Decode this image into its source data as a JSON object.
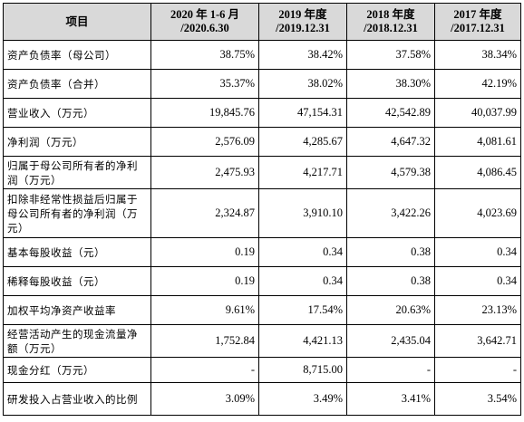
{
  "header": {
    "item": "项目",
    "periods": [
      [
        "2020 年 1-6 月",
        "/2020.6.30"
      ],
      [
        "2019 年度",
        "/2019.12.31"
      ],
      [
        "2018 年度",
        "/2018.12.31"
      ],
      [
        "2017 年度",
        "/2017.12.31"
      ]
    ]
  },
  "rows": [
    {
      "label": "资产负债率（母公司）",
      "values": [
        "38.75%",
        "38.42%",
        "37.58%",
        "38.34%"
      ]
    },
    {
      "label": "资产负债率（合并）",
      "values": [
        "35.37%",
        "38.02%",
        "38.30%",
        "42.19%"
      ]
    },
    {
      "label": "营业收入（万元）",
      "values": [
        "19,845.76",
        "47,154.31",
        "42,542.89",
        "40,037.99"
      ]
    },
    {
      "label": "净利润（万元）",
      "values": [
        "2,576.09",
        "4,285.67",
        "4,647.32",
        "4,081.61"
      ]
    },
    {
      "label": "归属于母公司所有者的净利润（万元）",
      "values": [
        "2,475.93",
        "4,217.71",
        "4,579.38",
        "4,086.45"
      ]
    },
    {
      "label": "扣除非经常性损益后归属于母公司所有者的净利润（万元）",
      "values": [
        "2,324.87",
        "3,910.10",
        "3,422.26",
        "4,023.69"
      ]
    },
    {
      "label": "基本每股收益（元）",
      "values": [
        "0.19",
        "0.34",
        "0.38",
        "0.34"
      ]
    },
    {
      "label": "稀释每股收益（元）",
      "values": [
        "0.19",
        "0.34",
        "0.38",
        "0.34"
      ]
    },
    {
      "label": "加权平均净资产收益率",
      "values": [
        "9.61%",
        "17.54%",
        "20.63%",
        "23.13%"
      ]
    },
    {
      "label": "经营活动产生的现金流量净额（万元）",
      "values": [
        "1,752.84",
        "4,421.13",
        "2,435.04",
        "3,642.71"
      ]
    },
    {
      "label": "现金分红（万元）",
      "values": [
        "-",
        "8,715.00",
        "-",
        "-"
      ]
    },
    {
      "label": "研发投入占营业收入的比例",
      "values": [
        "3.09%",
        "3.49%",
        "3.41%",
        "3.54%"
      ]
    }
  ]
}
